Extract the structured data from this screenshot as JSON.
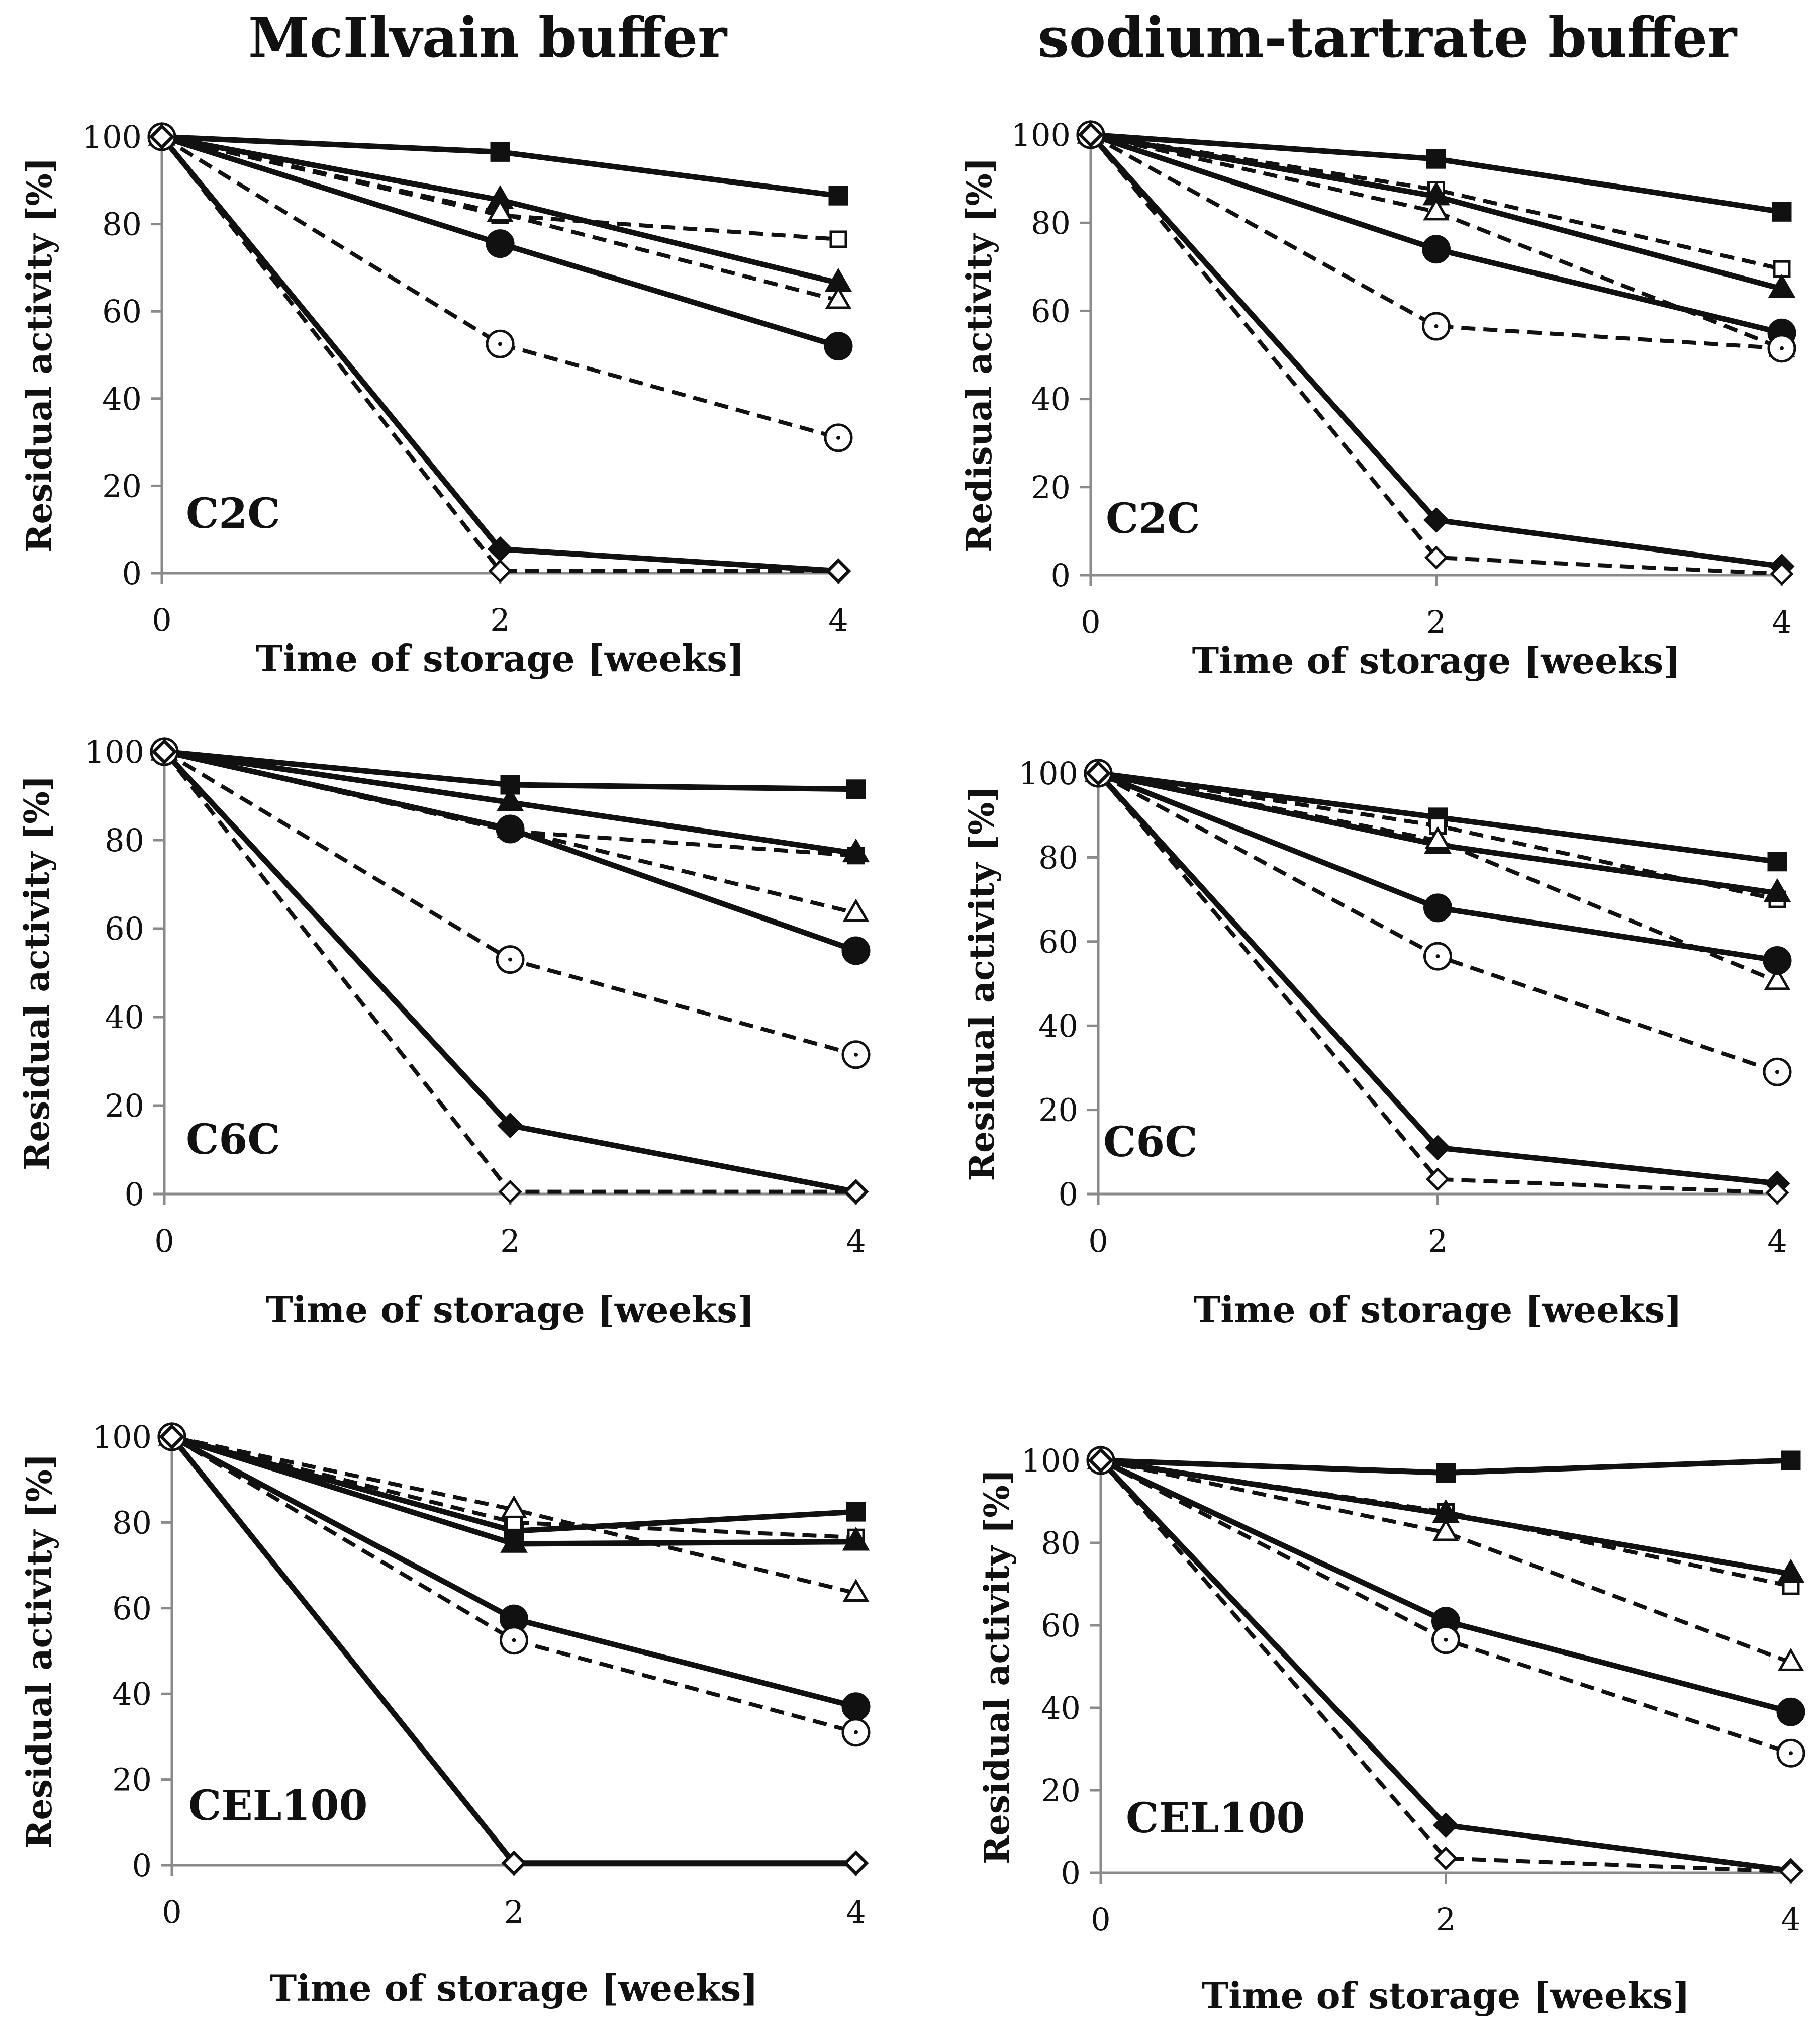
{
  "titles": {
    "left": "McIlvain buffer",
    "right": "sodium-tartrate buffer"
  },
  "styles": {
    "solid_color": "#111111",
    "dashed_color": "#111111",
    "axis_color": "#8a8a8a"
  },
  "chart_data": [
    {
      "type": "line",
      "panel_label": "C2C",
      "buffer": "McIlvain buffer",
      "xlabel": "Time of storage [weeks]",
      "ylabel": "Residual activity [%]",
      "x": [
        0,
        2,
        4
      ],
      "xlim": [
        0,
        4
      ],
      "ylim": [
        0,
        100
      ],
      "yticks": [
        0,
        20,
        40,
        60,
        80,
        100
      ],
      "xticks": [
        0,
        2,
        4
      ],
      "series": [
        {
          "marker": "square",
          "filled": true,
          "dashed": false,
          "values": [
            100,
            96.5,
            86.5
          ]
        },
        {
          "marker": "square",
          "filled": false,
          "dashed": true,
          "values": [
            100,
            82,
            76.5
          ]
        },
        {
          "marker": "triangle",
          "filled": true,
          "dashed": false,
          "values": [
            100,
            85.5,
            66.5
          ]
        },
        {
          "marker": "triangle",
          "filled": false,
          "dashed": true,
          "values": [
            100,
            82.5,
            62.5
          ]
        },
        {
          "marker": "circle",
          "filled": true,
          "dashed": false,
          "values": [
            100,
            75.5,
            52
          ]
        },
        {
          "marker": "circle",
          "filled": false,
          "dashed": true,
          "values": [
            100,
            52.5,
            31
          ]
        },
        {
          "marker": "diamond",
          "filled": true,
          "dashed": false,
          "values": [
            100,
            5.5,
            0.5
          ]
        },
        {
          "marker": "diamond",
          "filled": false,
          "dashed": true,
          "values": [
            100,
            0.5,
            0.5
          ]
        }
      ]
    },
    {
      "type": "line",
      "panel_label": "C2C",
      "buffer": "sodium-tartrate buffer",
      "xlabel": "Time of storage [weeks]",
      "ylabel": "Redisual activity [%]",
      "x": [
        0,
        2,
        4
      ],
      "xlim": [
        0,
        4
      ],
      "ylim": [
        0,
        100
      ],
      "yticks": [
        0,
        20,
        40,
        60,
        80,
        100
      ],
      "xticks": [
        0,
        2,
        4
      ],
      "series": [
        {
          "marker": "square",
          "filled": true,
          "dashed": false,
          "values": [
            100,
            94.5,
            82.5
          ]
        },
        {
          "marker": "square",
          "filled": false,
          "dashed": true,
          "values": [
            100,
            87.5,
            69.5
          ]
        },
        {
          "marker": "triangle",
          "filled": true,
          "dashed": false,
          "values": [
            100,
            86,
            65
          ]
        },
        {
          "marker": "triangle",
          "filled": false,
          "dashed": true,
          "values": [
            100,
            82.5,
            51.5
          ]
        },
        {
          "marker": "circle",
          "filled": true,
          "dashed": false,
          "values": [
            100,
            74,
            55
          ]
        },
        {
          "marker": "circle",
          "filled": false,
          "dashed": true,
          "values": [
            100,
            56.5,
            51.5
          ]
        },
        {
          "marker": "diamond",
          "filled": true,
          "dashed": false,
          "values": [
            100,
            12.5,
            2
          ]
        },
        {
          "marker": "diamond",
          "filled": false,
          "dashed": true,
          "values": [
            100,
            4,
            0.3
          ]
        }
      ]
    },
    {
      "type": "line",
      "panel_label": "C6C",
      "buffer": "McIlvain buffer",
      "xlabel": "Time of storage [weeks]",
      "ylabel": "Residual activity [%]",
      "x": [
        0,
        2,
        4
      ],
      "xlim": [
        0,
        4
      ],
      "ylim": [
        0,
        100
      ],
      "yticks": [
        0,
        20,
        40,
        60,
        80,
        100
      ],
      "xticks": [
        0,
        2,
        4
      ],
      "series": [
        {
          "marker": "square",
          "filled": true,
          "dashed": false,
          "values": [
            100,
            92.5,
            91.5
          ]
        },
        {
          "marker": "square",
          "filled": false,
          "dashed": true,
          "values": [
            100,
            82,
            76.5
          ]
        },
        {
          "marker": "triangle",
          "filled": true,
          "dashed": false,
          "values": [
            100,
            88.5,
            77
          ]
        },
        {
          "marker": "triangle",
          "filled": false,
          "dashed": true,
          "values": [
            100,
            82.5,
            63.5
          ]
        },
        {
          "marker": "circle",
          "filled": true,
          "dashed": false,
          "values": [
            100,
            82.5,
            55
          ]
        },
        {
          "marker": "circle",
          "filled": false,
          "dashed": true,
          "values": [
            100,
            53,
            31.5
          ]
        },
        {
          "marker": "diamond",
          "filled": true,
          "dashed": false,
          "values": [
            100,
            15.5,
            0.5
          ]
        },
        {
          "marker": "diamond",
          "filled": false,
          "dashed": true,
          "values": [
            100,
            0.5,
            0.5
          ]
        }
      ]
    },
    {
      "type": "line",
      "panel_label": "C6C",
      "buffer": "sodium-tartrate buffer",
      "xlabel": "Time of storage [weeks]",
      "ylabel": "Residual activity [%]",
      "x": [
        0,
        2,
        4
      ],
      "xlim": [
        0,
        4
      ],
      "ylim": [
        0,
        100
      ],
      "yticks": [
        0,
        20,
        40,
        60,
        80,
        100
      ],
      "xticks": [
        0,
        2,
        4
      ],
      "series": [
        {
          "marker": "square",
          "filled": true,
          "dashed": false,
          "values": [
            100,
            89.5,
            79
          ]
        },
        {
          "marker": "square",
          "filled": false,
          "dashed": true,
          "values": [
            100,
            87.5,
            70
          ]
        },
        {
          "marker": "triangle",
          "filled": true,
          "dashed": false,
          "values": [
            100,
            83,
            71.5
          ]
        },
        {
          "marker": "triangle",
          "filled": false,
          "dashed": true,
          "values": [
            100,
            84,
            50.5
          ]
        },
        {
          "marker": "circle",
          "filled": true,
          "dashed": false,
          "values": [
            100,
            68,
            55.5
          ]
        },
        {
          "marker": "circle",
          "filled": false,
          "dashed": true,
          "values": [
            100,
            56.5,
            29
          ]
        },
        {
          "marker": "diamond",
          "filled": true,
          "dashed": false,
          "values": [
            100,
            11,
            2.5
          ]
        },
        {
          "marker": "diamond",
          "filled": false,
          "dashed": true,
          "values": [
            100,
            3.5,
            0.3
          ]
        }
      ]
    },
    {
      "type": "line",
      "panel_label": "CEL100",
      "buffer": "McIlvain buffer",
      "xlabel": "Time of storage [weeks]",
      "ylabel": "Residual activity [%]",
      "x": [
        0,
        2,
        4
      ],
      "xlim": [
        0,
        4
      ],
      "ylim": [
        0,
        100
      ],
      "yticks": [
        0,
        20,
        40,
        60,
        80,
        100
      ],
      "xticks": [
        0,
        2,
        4
      ],
      "series": [
        {
          "marker": "square",
          "filled": true,
          "dashed": false,
          "values": [
            100,
            78,
            82.5
          ]
        },
        {
          "marker": "square",
          "filled": false,
          "dashed": true,
          "values": [
            100,
            80,
            76.5
          ]
        },
        {
          "marker": "triangle",
          "filled": true,
          "dashed": false,
          "values": [
            100,
            75,
            75.5
          ]
        },
        {
          "marker": "triangle",
          "filled": false,
          "dashed": true,
          "values": [
            100,
            83,
            63.5
          ]
        },
        {
          "marker": "circle",
          "filled": true,
          "dashed": false,
          "values": [
            100,
            57.5,
            37
          ]
        },
        {
          "marker": "circle",
          "filled": false,
          "dashed": true,
          "values": [
            100,
            52.5,
            31
          ]
        },
        {
          "marker": "diamond",
          "filled": true,
          "dashed": false,
          "values": [
            100,
            0.5,
            0.5
          ]
        },
        {
          "marker": "diamond",
          "filled": false,
          "dashed": true,
          "values": [
            100,
            0.5,
            0.5
          ]
        }
      ]
    },
    {
      "type": "line",
      "panel_label": "CEL100",
      "buffer": "sodium-tartrate buffer",
      "xlabel": "Time of storage [weeks]",
      "ylabel": "Residual activity [%]",
      "x": [
        0,
        2,
        4
      ],
      "xlim": [
        0,
        4
      ],
      "ylim": [
        0,
        100
      ],
      "yticks": [
        0,
        20,
        40,
        60,
        80,
        100
      ],
      "xticks": [
        0,
        2,
        4
      ],
      "series": [
        {
          "marker": "square",
          "filled": true,
          "dashed": false,
          "values": [
            100,
            97,
            100
          ]
        },
        {
          "marker": "square",
          "filled": false,
          "dashed": true,
          "values": [
            100,
            87.5,
            69.5
          ]
        },
        {
          "marker": "triangle",
          "filled": true,
          "dashed": false,
          "values": [
            100,
            87,
            72.5
          ]
        },
        {
          "marker": "triangle",
          "filled": false,
          "dashed": true,
          "values": [
            100,
            82.5,
            51
          ]
        },
        {
          "marker": "circle",
          "filled": true,
          "dashed": false,
          "values": [
            100,
            61,
            39
          ]
        },
        {
          "marker": "circle",
          "filled": false,
          "dashed": true,
          "values": [
            100,
            56.5,
            29
          ]
        },
        {
          "marker": "diamond",
          "filled": true,
          "dashed": false,
          "values": [
            100,
            11.5,
            0.5
          ]
        },
        {
          "marker": "diamond",
          "filled": false,
          "dashed": true,
          "values": [
            100,
            3.5,
            0.3
          ]
        }
      ]
    }
  ]
}
